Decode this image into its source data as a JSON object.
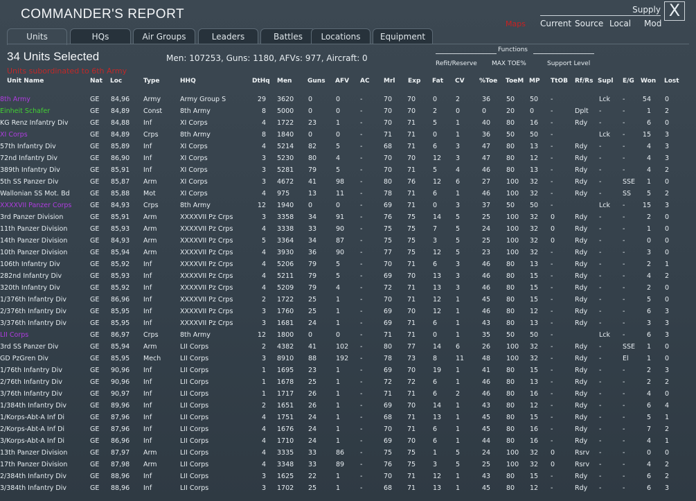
{
  "title": "COMMANDER'S REPORT",
  "close_label": "X",
  "supply": {
    "label": "Supply",
    "options": [
      "Current",
      "Source",
      "Local"
    ],
    "mod_label": "Mod",
    "red_text": "Maps"
  },
  "tabs": [
    "Units",
    "HQs",
    "Air Groups",
    "Leaders",
    "Battles",
    "Locations",
    "Equipment"
  ],
  "selected_text": "34 Units Selected",
  "totals_text": "Men: 107253, Guns: 1180, AFVs: 977, Aircraft: 0",
  "red_note": "Units subordinated to 6th Army",
  "functions": {
    "label": "Functions",
    "options": [
      "Refit/Reserve",
      "MAX TOE%",
      "Support Level"
    ]
  },
  "headers": [
    "Unit Name",
    "Nat",
    "Loc",
    "Type",
    "HHQ",
    "DtHq",
    "Men",
    "Guns",
    "AFV",
    "AC",
    "Mrl",
    "Exp",
    "Fat",
    "CV",
    "%Toe",
    "ToeM",
    "MP",
    "TtOB",
    "Rf/Rs",
    "Supl",
    "E/G",
    "Won",
    "Lost"
  ],
  "colors": {
    "purple": "#b03ce0",
    "green": "#42d232",
    "white": "#e6edf1"
  },
  "rows": [
    [
      "8th Army",
      "GE",
      "84,96",
      "Army",
      "Army Group S",
      "29",
      "3620",
      "0",
      "0",
      "-",
      "70",
      "70",
      "0",
      "2",
      "36",
      "50",
      "50",
      "-",
      "",
      "Lck",
      "-",
      "54",
      "0",
      "purple"
    ],
    [
      "Einheit Schafer",
      "GE",
      "84,89",
      "Const",
      "8th Army",
      "8",
      "5000",
      "0",
      "0",
      "-",
      "70",
      "70",
      "2",
      "0",
      "0",
      "20",
      "0",
      "-",
      "Dplt",
      "-",
      "-",
      "1",
      "2",
      "green"
    ],
    [
      "KG Renz Infantry Div",
      "GE",
      "84,88",
      "Inf",
      "XI Corps",
      "4",
      "1722",
      "23",
      "1",
      "-",
      "70",
      "71",
      "5",
      "1",
      "40",
      "80",
      "16",
      "-",
      "Rdy",
      "-",
      "-",
      "6",
      "0",
      "white"
    ],
    [
      "XI Corps",
      "GE",
      "84,89",
      "Crps",
      "8th Army",
      "8",
      "1840",
      "0",
      "0",
      "-",
      "71",
      "71",
      "0",
      "1",
      "36",
      "50",
      "50",
      "-",
      "",
      "Lck",
      "-",
      "15",
      "3",
      "purple"
    ],
    [
      "57th Infantry Div",
      "GE",
      "85,89",
      "Inf",
      "XI Corps",
      "4",
      "5214",
      "82",
      "5",
      "-",
      "68",
      "71",
      "6",
      "3",
      "47",
      "80",
      "13",
      "-",
      "Rdy",
      "-",
      "-",
      "4",
      "3",
      "white"
    ],
    [
      "72nd Infantry Div",
      "GE",
      "86,90",
      "Inf",
      "XI Corps",
      "3",
      "5230",
      "80",
      "4",
      "-",
      "70",
      "70",
      "12",
      "3",
      "47",
      "80",
      "12",
      "-",
      "Rdy",
      "-",
      "-",
      "4",
      "3",
      "white"
    ],
    [
      "389th Infantry Div",
      "GE",
      "85,91",
      "Inf",
      "XI Corps",
      "3",
      "5281",
      "79",
      "5",
      "-",
      "70",
      "71",
      "5",
      "4",
      "46",
      "80",
      "13",
      "-",
      "Rdy",
      "-",
      "-",
      "4",
      "2",
      "white"
    ],
    [
      "5th SS Panzer Div",
      "GE",
      "85,87",
      "Arm",
      "XI Corps",
      "3",
      "4672",
      "41",
      "98",
      "-",
      "80",
      "76",
      "12",
      "6",
      "27",
      "100",
      "32",
      "-",
      "Rdy",
      "-",
      "SSE",
      "1",
      "0",
      "white"
    ],
    [
      "Wallonian SS Mot. Bd",
      "GE",
      "85,88",
      "Mot",
      "XI Corps",
      "4",
      "975",
      "13",
      "11",
      "-",
      "78",
      "71",
      "6",
      "1",
      "46",
      "100",
      "32",
      "-",
      "Rdy",
      "-",
      "SS",
      "5",
      "2",
      "white"
    ],
    [
      "XXXXVII Panzer Corps",
      "GE",
      "84,93",
      "Crps",
      "8th Army",
      "12",
      "1940",
      "0",
      "0",
      "-",
      "69",
      "71",
      "0",
      "3",
      "37",
      "50",
      "50",
      "-",
      "",
      "Lck",
      "-",
      "15",
      "3",
      "purple"
    ],
    [
      "3rd Panzer Division",
      "GE",
      "85,91",
      "Arm",
      "XXXXVII Pz Crps",
      "3",
      "3358",
      "34",
      "91",
      "-",
      "76",
      "75",
      "14",
      "5",
      "25",
      "100",
      "32",
      "0",
      "Rdy",
      "-",
      "-",
      "2",
      "0",
      "white"
    ],
    [
      "11th Panzer Division",
      "GE",
      "85,93",
      "Arm",
      "XXXXVII Pz Crps",
      "4",
      "3338",
      "33",
      "90",
      "-",
      "75",
      "75",
      "7",
      "5",
      "24",
      "100",
      "32",
      "0",
      "Rdy",
      "-",
      "-",
      "1",
      "0",
      "white"
    ],
    [
      "14th Panzer Division",
      "GE",
      "84,93",
      "Arm",
      "XXXXVII Pz Crps",
      "5",
      "3364",
      "34",
      "87",
      "-",
      "75",
      "75",
      "3",
      "5",
      "25",
      "100",
      "32",
      "0",
      "Rdy",
      "-",
      "-",
      "0",
      "0",
      "white"
    ],
    [
      "10th Panzer Division",
      "GE",
      "85,94",
      "Arm",
      "XXXXVII Pz Crps",
      "4",
      "3930",
      "36",
      "90",
      "-",
      "77",
      "75",
      "12",
      "5",
      "23",
      "100",
      "32",
      "-",
      "Rdy",
      "-",
      "-",
      "3",
      "0",
      "white"
    ],
    [
      "106th Infantry Div",
      "GE",
      "85,92",
      "Inf",
      "XXXXVII Pz Crps",
      "4",
      "5206",
      "79",
      "5",
      "-",
      "70",
      "71",
      "6",
      "3",
      "46",
      "80",
      "13",
      "-",
      "Rdy",
      "-",
      "-",
      "2",
      "1",
      "white"
    ],
    [
      "282nd Infantry Div",
      "GE",
      "85,93",
      "Inf",
      "XXXXVII Pz Crps",
      "4",
      "5211",
      "79",
      "5",
      "-",
      "69",
      "70",
      "13",
      "3",
      "46",
      "80",
      "15",
      "-",
      "Rdy",
      "-",
      "-",
      "4",
      "2",
      "white"
    ],
    [
      "320th Infantry Div",
      "GE",
      "85,92",
      "Inf",
      "XXXXVII Pz Crps",
      "4",
      "5209",
      "79",
      "4",
      "-",
      "72",
      "71",
      "13",
      "3",
      "46",
      "80",
      "15",
      "-",
      "Rdy",
      "-",
      "-",
      "2",
      "0",
      "white"
    ],
    [
      "1/376th Infantry Div",
      "GE",
      "86,96",
      "Inf",
      "XXXXVII Pz Crps",
      "2",
      "1722",
      "25",
      "1",
      "-",
      "70",
      "71",
      "12",
      "1",
      "45",
      "80",
      "15",
      "-",
      "Rdy",
      "-",
      "-",
      "5",
      "0",
      "white"
    ],
    [
      "2/376th Infantry Div",
      "GE",
      "85,95",
      "Inf",
      "XXXXVII Pz Crps",
      "3",
      "1760",
      "25",
      "1",
      "-",
      "69",
      "70",
      "12",
      "1",
      "46",
      "80",
      "12",
      "-",
      "Rdy",
      "-",
      "-",
      "6",
      "3",
      "white"
    ],
    [
      "3/376th Infantry Div",
      "GE",
      "85,95",
      "Inf",
      "XXXXVII Pz Crps",
      "3",
      "1681",
      "24",
      "1",
      "-",
      "69",
      "71",
      "6",
      "1",
      "43",
      "80",
      "13",
      "-",
      "Rdy",
      "-",
      "-",
      "3",
      "3",
      "white"
    ],
    [
      "LII Corps",
      "GE",
      "86,97",
      "Crps",
      "8th Army",
      "12",
      "1800",
      "0",
      "0",
      "-",
      "71",
      "71",
      "0",
      "1",
      "35",
      "50",
      "50",
      "-",
      "",
      "Lck",
      "-",
      "6",
      "3",
      "purple"
    ],
    [
      "3rd SS Panzer Div",
      "GE",
      "85,94",
      "Arm",
      "LII Corps",
      "2",
      "4382",
      "41",
      "102",
      "-",
      "80",
      "77",
      "14",
      "6",
      "26",
      "100",
      "32",
      "-",
      "Rdy",
      "-",
      "SSE",
      "1",
      "0",
      "white"
    ],
    [
      "GD PzGren Div",
      "GE",
      "85,95",
      "Mech",
      "LII Corps",
      "3",
      "8910",
      "88",
      "192",
      "-",
      "78",
      "73",
      "8",
      "11",
      "48",
      "100",
      "32",
      "-",
      "Rdy",
      "-",
      "El",
      "1",
      "0",
      "white"
    ],
    [
      "1/76th Infantry Div",
      "GE",
      "90,96",
      "Inf",
      "LII Corps",
      "1",
      "1695",
      "23",
      "1",
      "-",
      "69",
      "70",
      "19",
      "1",
      "41",
      "80",
      "15",
      "-",
      "Rdy",
      "-",
      "-",
      "2",
      "3",
      "white"
    ],
    [
      "2/76th Infantry Div",
      "GE",
      "90,96",
      "Inf",
      "LII Corps",
      "1",
      "1678",
      "25",
      "1",
      "-",
      "72",
      "72",
      "6",
      "1",
      "46",
      "80",
      "13",
      "-",
      "Rdy",
      "-",
      "-",
      "2",
      "2",
      "white"
    ],
    [
      "3/76th Infantry Div",
      "GE",
      "90,97",
      "Inf",
      "LII Corps",
      "1",
      "1717",
      "26",
      "1",
      "-",
      "71",
      "71",
      "6",
      "2",
      "46",
      "80",
      "16",
      "-",
      "Rdy",
      "-",
      "-",
      "4",
      "0",
      "white"
    ],
    [
      "1/384th Infantry Div",
      "GE",
      "89,96",
      "Inf",
      "LII Corps",
      "2",
      "1651",
      "26",
      "1",
      "-",
      "69",
      "70",
      "14",
      "1",
      "43",
      "80",
      "12",
      "-",
      "Rdy",
      "-",
      "-",
      "6",
      "4",
      "white"
    ],
    [
      "1/Korps-Abt-A Inf Di",
      "GE",
      "87,96",
      "Inf",
      "LII Corps",
      "4",
      "1751",
      "24",
      "1",
      "-",
      "68",
      "71",
      "13",
      "1",
      "45",
      "80",
      "15",
      "-",
      "Rdy",
      "-",
      "-",
      "5",
      "1",
      "white"
    ],
    [
      "2/Korps-Abt-A Inf Di",
      "GE",
      "87,96",
      "Inf",
      "LII Corps",
      "4",
      "1676",
      "24",
      "1",
      "-",
      "70",
      "71",
      "6",
      "1",
      "45",
      "80",
      "16",
      "-",
      "Rdy",
      "-",
      "-",
      "7",
      "2",
      "white"
    ],
    [
      "3/Korps-Abt-A Inf Di",
      "GE",
      "86,96",
      "Inf",
      "LII Corps",
      "4",
      "1710",
      "24",
      "1",
      "-",
      "69",
      "70",
      "6",
      "1",
      "44",
      "80",
      "16",
      "-",
      "Rdy",
      "-",
      "-",
      "4",
      "1",
      "white"
    ],
    [
      "13th Panzer Division",
      "GE",
      "87,97",
      "Arm",
      "LII Corps",
      "4",
      "3335",
      "33",
      "86",
      "-",
      "75",
      "75",
      "1",
      "5",
      "24",
      "100",
      "32",
      "0",
      "Rsrv",
      "-",
      "-",
      "0",
      "0",
      "white"
    ],
    [
      "17th Panzer Division",
      "GE",
      "87,98",
      "Arm",
      "LII Corps",
      "4",
      "3348",
      "33",
      "89",
      "-",
      "76",
      "75",
      "3",
      "5",
      "25",
      "100",
      "32",
      "0",
      "Rsrv",
      "-",
      "-",
      "4",
      "2",
      "white"
    ],
    [
      "2/384th Infantry Div",
      "GE",
      "88,96",
      "Inf",
      "LII Corps",
      "3",
      "1625",
      "22",
      "1",
      "-",
      "70",
      "71",
      "12",
      "1",
      "43",
      "80",
      "15",
      "-",
      "Rdy",
      "-",
      "-",
      "6",
      "2",
      "white"
    ],
    [
      "3/384th Infantry Div",
      "GE",
      "88,96",
      "Inf",
      "LII Corps",
      "3",
      "1702",
      "25",
      "1",
      "-",
      "68",
      "71",
      "13",
      "1",
      "45",
      "80",
      "12",
      "-",
      "Rdy",
      "-",
      "-",
      "6",
      "3",
      "white"
    ]
  ]
}
